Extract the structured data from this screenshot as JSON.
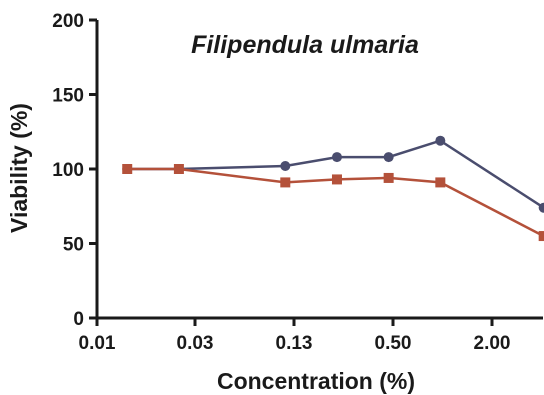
{
  "chart_data": {
    "type": "line",
    "title": "Filipendula ulmaria",
    "xlabel": "Concentration (%)",
    "ylabel": "Viability (%)",
    "x_tick_labels": [
      "0.01",
      "0.03",
      "0.13",
      "0.50",
      "2.00"
    ],
    "y_ticks": [
      0,
      50,
      100,
      150,
      200
    ],
    "ylim": [
      0,
      200
    ],
    "x": [
      0.015,
      0.03,
      0.125,
      0.25,
      0.5,
      1.0,
      4.0
    ],
    "series": [
      {
        "values": [
          100,
          100,
          102,
          108,
          108,
          119,
          74
        ],
        "color": "#4a4d6e",
        "marker": "circle"
      },
      {
        "values": [
          100,
          100,
          91,
          93,
          94,
          91,
          55
        ],
        "color": "#b4513a",
        "marker": "square"
      }
    ],
    "grid": false,
    "legend": "none"
  }
}
